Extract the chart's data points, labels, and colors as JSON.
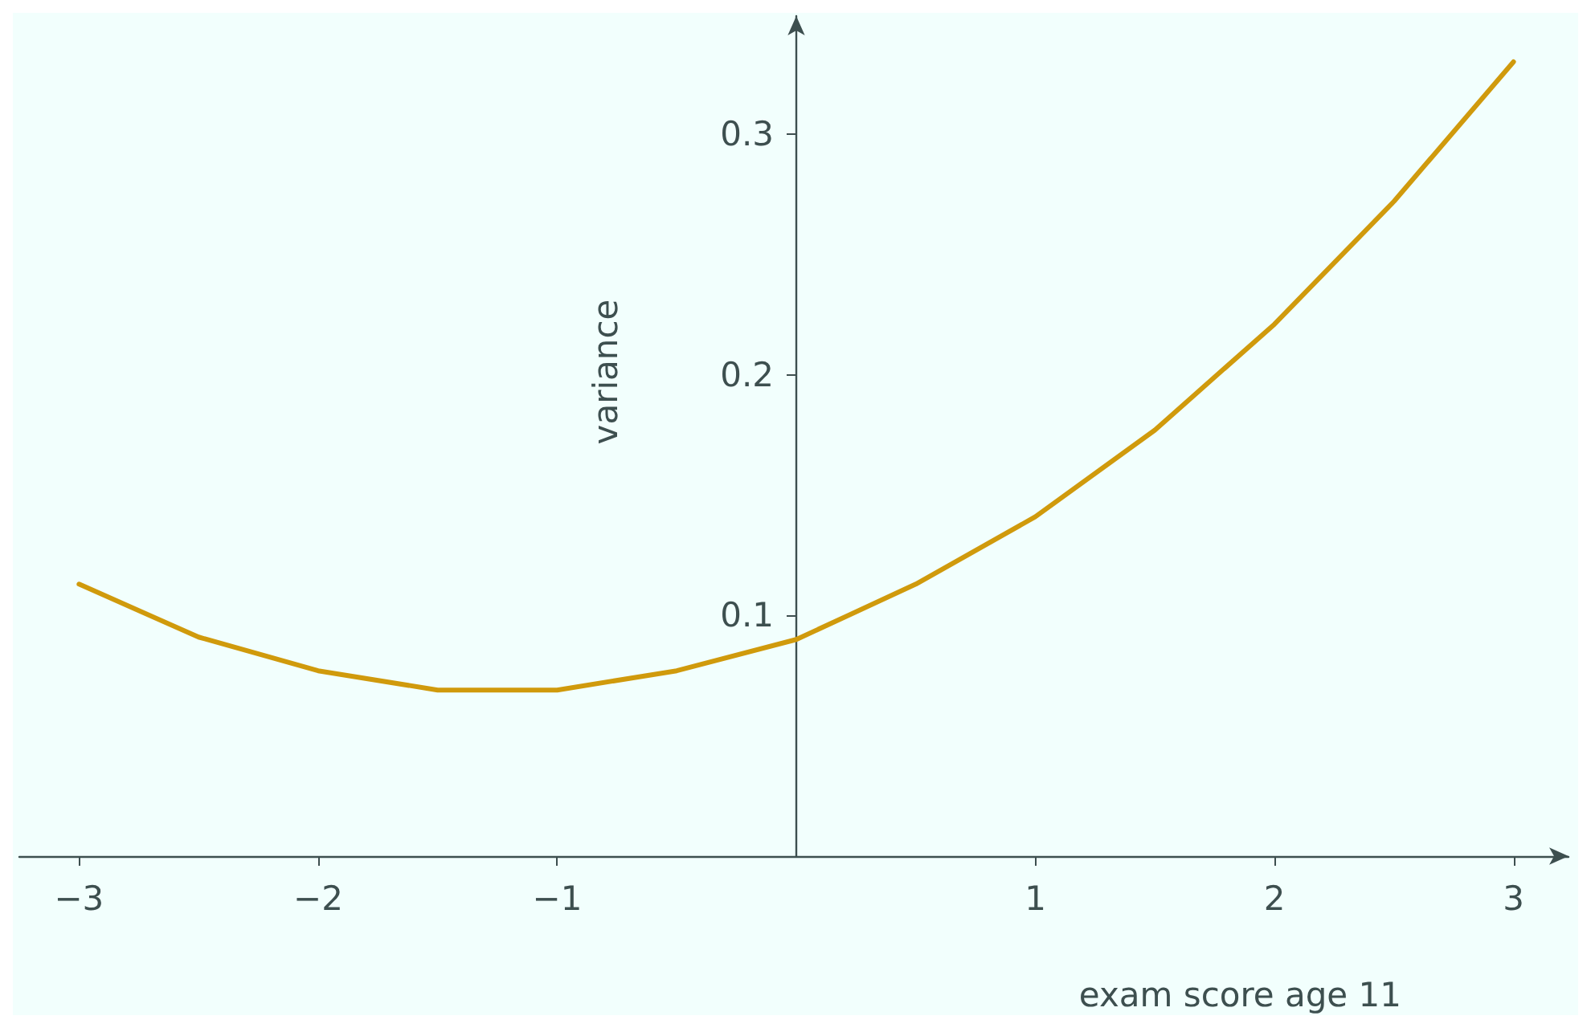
{
  "chart_data": {
    "type": "line",
    "xlabel": "exam score age 11",
    "ylabel": "variance",
    "x": [
      -3,
      -2.5,
      -2,
      -1.5,
      -1,
      -0.5,
      0,
      0.5,
      1,
      1.5,
      2,
      2.5,
      3
    ],
    "series": [
      {
        "color": "#d09a0c",
        "values": [
          0.113,
          0.091,
          0.077,
          0.069,
          0.069,
          0.077,
          0.09,
          0.113,
          0.141,
          0.177,
          0.221,
          0.272,
          0.33
        ]
      }
    ],
    "xlim": [
      -3.25,
      3.23
    ],
    "ylim": [
      0,
      0.349
    ],
    "xticks": [
      {
        "value": -3,
        "label": "−3"
      },
      {
        "value": -2,
        "label": "−2"
      },
      {
        "value": -1,
        "label": "−1"
      },
      1,
      2,
      3
    ],
    "yticks": [
      0.1,
      0.2,
      0.3
    ],
    "grid": false,
    "marker": "none",
    "line_style": "solid"
  }
}
